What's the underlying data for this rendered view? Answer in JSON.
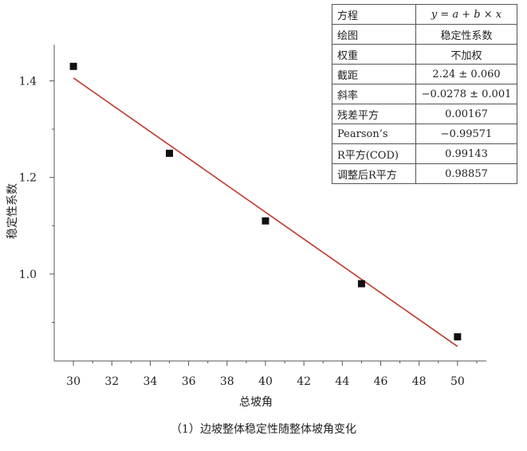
{
  "chart_data": {
    "type": "scatter",
    "xlabel": "总坡角",
    "ylabel": "稳定性系数",
    "xlim": [
      29,
      51.5
    ],
    "ylim": [
      0.82,
      1.475
    ],
    "x_ticks": [
      "30",
      "32",
      "34",
      "36",
      "38",
      "40",
      "42",
      "44",
      "46",
      "48",
      "50"
    ],
    "y_ticks": [
      {
        "value": 1.0,
        "label": "1.0"
      },
      {
        "value": 1.2,
        "label": "1.2"
      },
      {
        "value": 1.4,
        "label": "1.4"
      }
    ],
    "y_minor_ticks": [
      0.9,
      1.1,
      1.3
    ],
    "points": [
      {
        "x": 30,
        "y": 1.43
      },
      {
        "x": 35,
        "y": 1.25
      },
      {
        "x": 40,
        "y": 1.11
      },
      {
        "x": 45,
        "y": 0.98
      },
      {
        "x": 50,
        "y": 0.87
      }
    ],
    "fit_line": {
      "x": [
        30,
        50
      ],
      "y": [
        1.406,
        0.85
      ]
    },
    "grid": false,
    "colors": {
      "marker": "#111111",
      "fit_line": "#c0392b",
      "axis": "#555555"
    }
  },
  "fit_table": [
    {
      "key": "方程",
      "value": "y = a + b × x"
    },
    {
      "key": "绘图",
      "value": "稳定性系数"
    },
    {
      "key": "权重",
      "value": "不加权"
    },
    {
      "key": "截距",
      "value": "2.24 ± 0.060"
    },
    {
      "key": "斜率",
      "value": "−0.0278 ± 0.001"
    },
    {
      "key": "残差平方",
      "value": "0.00167"
    },
    {
      "key": "Pearson’s",
      "value": "−0.99571"
    },
    {
      "key": "R平方(COD)",
      "value": "0.99143"
    },
    {
      "key": "调整后R平方",
      "value": "0.98857"
    }
  ],
  "caption": "（1）边坡整体稳定性随整体坡角变化"
}
